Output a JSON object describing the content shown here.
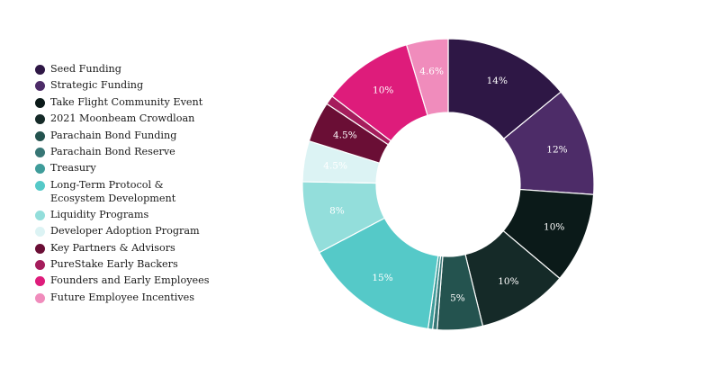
{
  "header_fragment": "",
  "chart_data": {
    "type": "pie",
    "title": "",
    "donut": true,
    "legend_position": "left",
    "categories": [
      "Seed Funding",
      "Strategic Funding",
      "Take Flight Community Event",
      "2021 Moonbeam Crowdloan",
      "Parachain Bond Funding",
      "Parachain Bond Reserve",
      "Treasury",
      "Long-Term Protocol & Ecosystem Development",
      "Liquidity Programs",
      "Developer Adoption Program",
      "Key Partners & Advisors",
      "PureStake Early Backers",
      "Founders and Early Employees",
      "Future Employee Incentives"
    ],
    "values": [
      14,
      12,
      10,
      10,
      5,
      0.5,
      0.5,
      15,
      8,
      4.5,
      4.5,
      1,
      10,
      4.6
    ],
    "data_labels": [
      "14%",
      "12%",
      "10%",
      "10%",
      "5%",
      "",
      "",
      "15%",
      "8%",
      "4.5%",
      "4.5%",
      "",
      "10%",
      "4.6%"
    ],
    "colors": [
      "#2e1745",
      "#4d2c68",
      "#0b1a19",
      "#152a28",
      "#24534f",
      "#377675",
      "#3f9c9a",
      "#55c9c8",
      "#93dedb",
      "#dcf3f4",
      "#6a0e35",
      "#a51d5c",
      "#de1c7b",
      "#f08cbc"
    ],
    "label_colors": [
      "#ffffff",
      "#ffffff",
      "#ffffff",
      "#ffffff",
      "#ffffff",
      "#ffffff",
      "#ffffff",
      "#ffffff",
      "#ffffff",
      "#ffffff",
      "#ffffff",
      "#ffffff",
      "#ffffff",
      "#ffffff"
    ]
  }
}
